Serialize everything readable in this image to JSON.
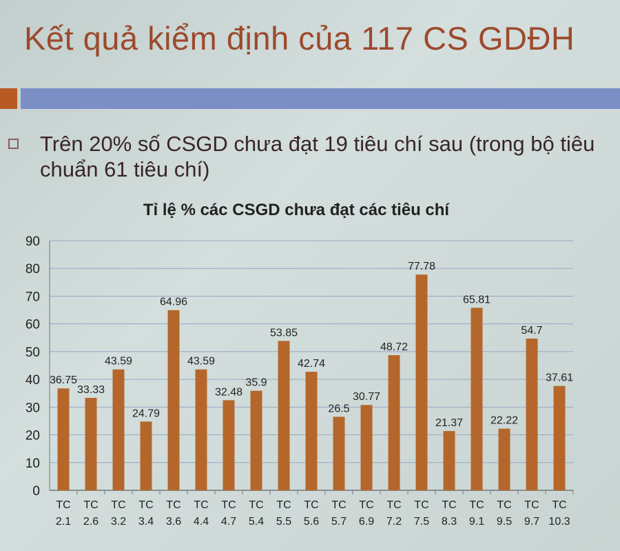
{
  "slide": {
    "title": "Kết quả kiểm định của 117 CS GDĐH",
    "bullet": "Trên 20% số CSGD chưa đạt 19 tiêu chí sau (trong bộ tiêu chuẩn 61 tiêu chí)"
  },
  "colors": {
    "bar": "#b5672b",
    "title": "#9c4a2c",
    "header_band": "#7b8fc4"
  },
  "chart_data": {
    "type": "bar",
    "title": "Tỉ lệ % các CSGD chưa đạt các tiêu chí",
    "xlabel": "",
    "ylabel": "",
    "ylim": [
      0,
      90
    ],
    "yticks": [
      0,
      10,
      20,
      30,
      40,
      50,
      60,
      70,
      80,
      90
    ],
    "grid": true,
    "categories": [
      "TC 2.1",
      "TC 2.6",
      "TC 3.2",
      "TC 3.4",
      "TC 3.6",
      "TC 4.4",
      "TC 4.7",
      "TC 5.4",
      "TC 5.5",
      "TC 5.6",
      "TC 5.7",
      "TC 6.9",
      "TC 7.2",
      "TC 7.5",
      "TC 8.3",
      "TC 9.1",
      "TC 9.5",
      "TC 9.7",
      "TC 10.3"
    ],
    "values": [
      36.75,
      33.33,
      43.59,
      24.79,
      64.96,
      43.59,
      32.48,
      35.9,
      53.85,
      42.74,
      26.5,
      30.77,
      48.72,
      77.78,
      21.37,
      65.81,
      22.22,
      54.7,
      37.61
    ]
  }
}
